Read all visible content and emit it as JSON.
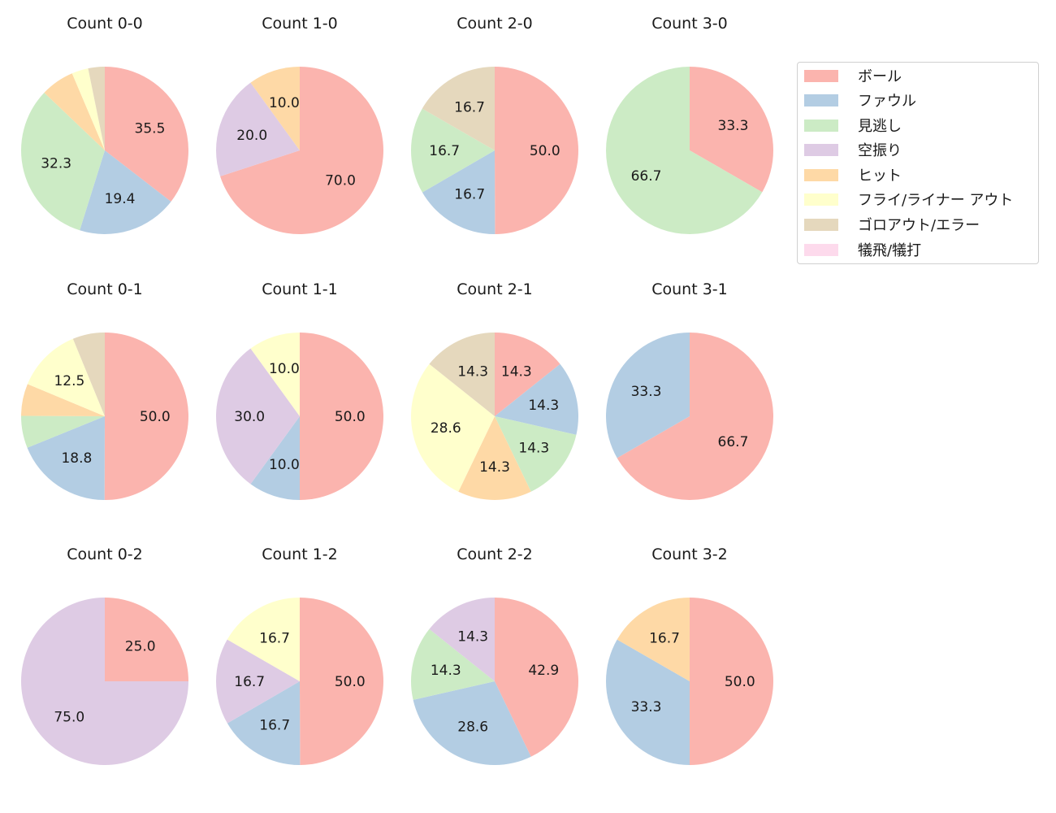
{
  "chart_data": {
    "type": "pie",
    "title": "",
    "legend": {
      "position": "upper right",
      "entries": [
        {
          "label": "ボール",
          "color": "#fbb4ae"
        },
        {
          "label": "ファウル",
          "color": "#b3cde3"
        },
        {
          "label": "見逃し",
          "color": "#ccebc5"
        },
        {
          "label": "空振り",
          "color": "#decbe4"
        },
        {
          "label": "ヒット",
          "color": "#fed9a6"
        },
        {
          "label": "フライ/ライナー アウト",
          "color": "#ffffcc"
        },
        {
          "label": "ゴロアウト/エラー",
          "color": "#e5d8bd"
        },
        {
          "label": "犠飛/犠打",
          "color": "#fddaec"
        }
      ]
    },
    "categories": [
      "ボール",
      "ファウル",
      "見逃し",
      "空振り",
      "ヒット",
      "フライ/ライナー アウト",
      "ゴロアウト/エラー",
      "犠飛/犠打"
    ],
    "start_angle": 90,
    "direction": "clockwise",
    "label_threshold_note": "labels shown for slices >= 10%",
    "subplots": [
      {
        "title": "Count 0-0",
        "values": [
          35.5,
          19.4,
          32.3,
          0,
          6.5,
          3.2,
          3.2,
          0
        ]
      },
      {
        "title": "Count 1-0",
        "values": [
          70.0,
          0,
          0,
          20.0,
          10.0,
          0,
          0,
          0
        ]
      },
      {
        "title": "Count 2-0",
        "values": [
          50.0,
          16.7,
          16.7,
          0,
          0,
          0,
          16.7,
          0
        ]
      },
      {
        "title": "Count 3-0",
        "values": [
          33.3,
          0,
          66.7,
          0,
          0,
          0,
          0,
          0
        ]
      },
      {
        "title": "Count 0-1",
        "values": [
          50.0,
          18.8,
          6.2,
          0,
          6.2,
          12.5,
          6.2,
          0
        ]
      },
      {
        "title": "Count 1-1",
        "values": [
          50.0,
          10.0,
          0,
          30.0,
          0,
          10.0,
          0,
          0
        ]
      },
      {
        "title": "Count 2-1",
        "values": [
          14.3,
          14.3,
          14.3,
          0,
          14.3,
          28.6,
          14.3,
          0
        ]
      },
      {
        "title": "Count 3-1",
        "values": [
          66.7,
          33.3,
          0,
          0,
          0,
          0,
          0,
          0
        ]
      },
      {
        "title": "Count 0-2",
        "values": [
          25.0,
          0,
          0,
          75.0,
          0,
          0,
          0,
          0
        ]
      },
      {
        "title": "Count 1-2",
        "values": [
          50.0,
          16.7,
          0,
          16.7,
          0,
          16.7,
          0,
          0
        ]
      },
      {
        "title": "Count 2-2",
        "values": [
          42.9,
          28.6,
          14.3,
          14.3,
          0,
          0,
          0,
          0
        ]
      },
      {
        "title": "Count 3-2",
        "values": [
          50.0,
          33.3,
          0,
          0,
          16.7,
          0,
          0,
          0
        ]
      }
    ]
  }
}
